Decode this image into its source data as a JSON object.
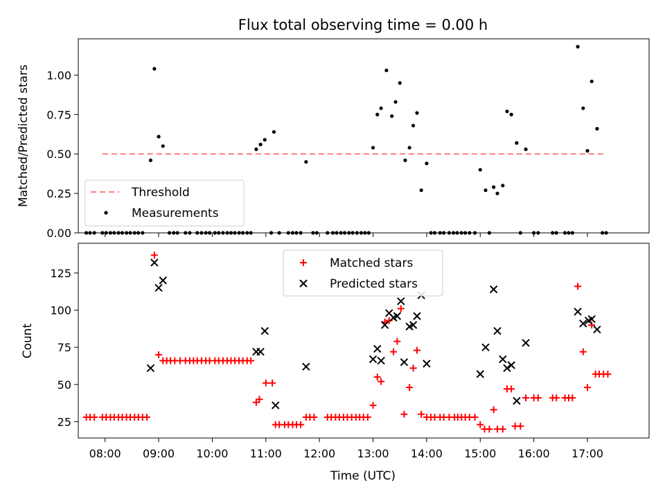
{
  "figure": {
    "title": "Flux total observing time = 0.00 h"
  },
  "colors": {
    "threshold": "#ff7f7f",
    "measurements": "#000000",
    "matched": "#ff0000",
    "predicted": "#000000",
    "axes": "#000000",
    "background": "#ffffff"
  },
  "chart_data": [
    {
      "type": "scatter",
      "title": "Flux total observing time = 0.00 h",
      "xlabel": "",
      "ylabel": "Matched/Predicted stars",
      "x_unit": "hours (UTC)",
      "xlim": [
        7.5,
        18.15
      ],
      "ylim": [
        0.0,
        1.23
      ],
      "yticks": [
        0.0,
        0.25,
        0.5,
        0.75,
        1.0
      ],
      "ytick_labels": [
        "0.00",
        "0.25",
        "0.50",
        "0.75",
        "1.00"
      ],
      "legend_position": "lower-left",
      "grid": false,
      "threshold": {
        "name": "Threshold",
        "y": 0.5,
        "x_range": [
          7.95,
          17.35
        ],
        "style": "dashed"
      },
      "series": [
        {
          "name": "Measurements",
          "marker": "dot",
          "points": [
            [
              7.65,
              0
            ],
            [
              7.72,
              0
            ],
            [
              7.8,
              0
            ],
            [
              7.95,
              0
            ],
            [
              8.02,
              0
            ],
            [
              8.1,
              0
            ],
            [
              8.17,
              0
            ],
            [
              8.25,
              0
            ],
            [
              8.32,
              0
            ],
            [
              8.4,
              0
            ],
            [
              8.47,
              0
            ],
            [
              8.55,
              0
            ],
            [
              8.62,
              0
            ],
            [
              8.7,
              0
            ],
            [
              8.85,
              0.46
            ],
            [
              8.92,
              1.04
            ],
            [
              9.0,
              0.61
            ],
            [
              9.08,
              0.55
            ],
            [
              9.2,
              0
            ],
            [
              9.28,
              0
            ],
            [
              9.35,
              0
            ],
            [
              9.5,
              0
            ],
            [
              9.58,
              0
            ],
            [
              9.72,
              0
            ],
            [
              9.8,
              0
            ],
            [
              9.88,
              0
            ],
            [
              9.95,
              0
            ],
            [
              10.05,
              0
            ],
            [
              10.12,
              0
            ],
            [
              10.2,
              0
            ],
            [
              10.28,
              0
            ],
            [
              10.35,
              0
            ],
            [
              10.42,
              0
            ],
            [
              10.5,
              0
            ],
            [
              10.57,
              0
            ],
            [
              10.65,
              0
            ],
            [
              10.72,
              0
            ],
            [
              10.82,
              0.53
            ],
            [
              10.9,
              0.56
            ],
            [
              10.98,
              0.59
            ],
            [
              11.15,
              0.64
            ],
            [
              11.1,
              0
            ],
            [
              11.25,
              0
            ],
            [
              11.42,
              0
            ],
            [
              11.5,
              0
            ],
            [
              11.57,
              0
            ],
            [
              11.65,
              0
            ],
            [
              11.75,
              0.45
            ],
            [
              11.88,
              0
            ],
            [
              11.95,
              0
            ],
            [
              12.15,
              0
            ],
            [
              12.25,
              0
            ],
            [
              12.32,
              0
            ],
            [
              12.4,
              0
            ],
            [
              12.47,
              0
            ],
            [
              12.55,
              0
            ],
            [
              12.62,
              0
            ],
            [
              12.7,
              0
            ],
            [
              12.78,
              0
            ],
            [
              12.85,
              0
            ],
            [
              12.92,
              0
            ],
            [
              13.0,
              0.54
            ],
            [
              13.08,
              0.75
            ],
            [
              13.15,
              0.79
            ],
            [
              13.25,
              1.03
            ],
            [
              13.35,
              0.74
            ],
            [
              13.42,
              0.83
            ],
            [
              13.5,
              0.95
            ],
            [
              13.6,
              0.46
            ],
            [
              13.68,
              0.54
            ],
            [
              13.75,
              0.68
            ],
            [
              13.82,
              0.76
            ],
            [
              13.9,
              0.27
            ],
            [
              14.0,
              0.44
            ],
            [
              14.08,
              0
            ],
            [
              14.15,
              0
            ],
            [
              14.25,
              0
            ],
            [
              14.32,
              0
            ],
            [
              14.42,
              0
            ],
            [
              14.5,
              0
            ],
            [
              14.57,
              0
            ],
            [
              14.65,
              0
            ],
            [
              14.72,
              0
            ],
            [
              14.8,
              0
            ],
            [
              14.9,
              0
            ],
            [
              15.0,
              0.4
            ],
            [
              15.1,
              0.27
            ],
            [
              15.25,
              0.29
            ],
            [
              15.32,
              0.25
            ],
            [
              15.42,
              0.3
            ],
            [
              15.5,
              0.77
            ],
            [
              15.58,
              0.75
            ],
            [
              15.68,
              0.57
            ],
            [
              15.85,
              0.53
            ],
            [
              15.17,
              0
            ],
            [
              15.75,
              0
            ],
            [
              16.0,
              0
            ],
            [
              16.08,
              0
            ],
            [
              16.35,
              0
            ],
            [
              16.42,
              0
            ],
            [
              16.58,
              0
            ],
            [
              16.65,
              0
            ],
            [
              16.72,
              0
            ],
            [
              16.82,
              1.18
            ],
            [
              16.92,
              0.79
            ],
            [
              17.0,
              0.52
            ],
            [
              17.08,
              0.96
            ],
            [
              17.18,
              0.66
            ],
            [
              17.28,
              0
            ],
            [
              17.35,
              0
            ]
          ]
        }
      ]
    },
    {
      "type": "scatter",
      "title": "",
      "xlabel": "Time (UTC)",
      "ylabel": "Count",
      "x_unit": "hours (UTC)",
      "xlim": [
        7.5,
        18.15
      ],
      "ylim": [
        14,
        145
      ],
      "xticks": [
        8,
        9,
        10,
        11,
        12,
        13,
        14,
        15,
        16,
        17
      ],
      "xtick_labels": [
        "08:00",
        "09:00",
        "10:00",
        "11:00",
        "12:00",
        "13:00",
        "14:00",
        "15:00",
        "16:00",
        "17:00"
      ],
      "yticks": [
        25,
        50,
        75,
        100,
        125
      ],
      "ytick_labels": [
        "25",
        "50",
        "75",
        "100",
        "125"
      ],
      "legend_position": "upper-center",
      "grid": false,
      "series": [
        {
          "name": "Matched stars",
          "marker": "plus",
          "points": [
            [
              7.65,
              28
            ],
            [
              7.72,
              28
            ],
            [
              7.8,
              28
            ],
            [
              7.95,
              28
            ],
            [
              8.02,
              28
            ],
            [
              8.1,
              28
            ],
            [
              8.17,
              28
            ],
            [
              8.25,
              28
            ],
            [
              8.32,
              28
            ],
            [
              8.4,
              28
            ],
            [
              8.47,
              28
            ],
            [
              8.55,
              28
            ],
            [
              8.62,
              28
            ],
            [
              8.7,
              28
            ],
            [
              8.78,
              28
            ],
            [
              8.92,
              137
            ],
            [
              9.0,
              70
            ],
            [
              9.08,
              66
            ],
            [
              9.15,
              66
            ],
            [
              9.22,
              66
            ],
            [
              9.3,
              66
            ],
            [
              9.4,
              66
            ],
            [
              9.5,
              66
            ],
            [
              9.58,
              66
            ],
            [
              9.65,
              66
            ],
            [
              9.72,
              66
            ],
            [
              9.8,
              66
            ],
            [
              9.88,
              66
            ],
            [
              9.95,
              66
            ],
            [
              10.05,
              66
            ],
            [
              10.12,
              66
            ],
            [
              10.2,
              66
            ],
            [
              10.28,
              66
            ],
            [
              10.35,
              66
            ],
            [
              10.42,
              66
            ],
            [
              10.5,
              66
            ],
            [
              10.57,
              66
            ],
            [
              10.65,
              66
            ],
            [
              10.72,
              66
            ],
            [
              10.82,
              38
            ],
            [
              10.88,
              40
            ],
            [
              11.0,
              51
            ],
            [
              11.12,
              51
            ],
            [
              11.18,
              23
            ],
            [
              11.25,
              23
            ],
            [
              11.35,
              23
            ],
            [
              11.42,
              23
            ],
            [
              11.5,
              23
            ],
            [
              11.57,
              23
            ],
            [
              11.65,
              23
            ],
            [
              11.75,
              28
            ],
            [
              11.82,
              28
            ],
            [
              11.9,
              28
            ],
            [
              12.15,
              28
            ],
            [
              12.22,
              28
            ],
            [
              12.3,
              28
            ],
            [
              12.37,
              28
            ],
            [
              12.45,
              28
            ],
            [
              12.52,
              28
            ],
            [
              12.6,
              28
            ],
            [
              12.68,
              28
            ],
            [
              12.75,
              28
            ],
            [
              12.82,
              28
            ],
            [
              12.9,
              28
            ],
            [
              13.0,
              36
            ],
            [
              13.08,
              55
            ],
            [
              13.15,
              52
            ],
            [
              13.22,
              92
            ],
            [
              13.3,
              93
            ],
            [
              13.38,
              72
            ],
            [
              13.45,
              79
            ],
            [
              13.52,
              101
            ],
            [
              13.58,
              30
            ],
            [
              13.68,
              48
            ],
            [
              13.75,
              61
            ],
            [
              13.82,
              73
            ],
            [
              13.9,
              30
            ],
            [
              14.0,
              28
            ],
            [
              14.08,
              28
            ],
            [
              14.15,
              28
            ],
            [
              14.25,
              28
            ],
            [
              14.32,
              28
            ],
            [
              14.42,
              28
            ],
            [
              14.52,
              28
            ],
            [
              14.58,
              28
            ],
            [
              14.65,
              28
            ],
            [
              14.72,
              28
            ],
            [
              14.8,
              28
            ],
            [
              14.9,
              28
            ],
            [
              15.0,
              23
            ],
            [
              15.08,
              20
            ],
            [
              15.17,
              20
            ],
            [
              15.25,
              33
            ],
            [
              15.32,
              20
            ],
            [
              15.42,
              20
            ],
            [
              15.5,
              47
            ],
            [
              15.58,
              47
            ],
            [
              15.65,
              22
            ],
            [
              15.75,
              22
            ],
            [
              15.85,
              41
            ],
            [
              16.0,
              41
            ],
            [
              16.08,
              41
            ],
            [
              16.35,
              41
            ],
            [
              16.42,
              41
            ],
            [
              16.58,
              41
            ],
            [
              16.65,
              41
            ],
            [
              16.72,
              41
            ],
            [
              16.82,
              116
            ],
            [
              16.92,
              72
            ],
            [
              17.0,
              48
            ],
            [
              17.08,
              90
            ],
            [
              17.15,
              57
            ],
            [
              17.22,
              57
            ],
            [
              17.3,
              57
            ],
            [
              17.38,
              57
            ]
          ]
        },
        {
          "name": "Predicted stars",
          "marker": "x",
          "points": [
            [
              8.85,
              61
            ],
            [
              8.92,
              132
            ],
            [
              9.0,
              115
            ],
            [
              9.08,
              120
            ],
            [
              10.82,
              72
            ],
            [
              10.9,
              72
            ],
            [
              10.98,
              86
            ],
            [
              11.18,
              36
            ],
            [
              11.75,
              62
            ],
            [
              13.0,
              67
            ],
            [
              13.08,
              74
            ],
            [
              13.15,
              66
            ],
            [
              13.22,
              90
            ],
            [
              13.3,
              98
            ],
            [
              13.38,
              95
            ],
            [
              13.45,
              96
            ],
            [
              13.52,
              106
            ],
            [
              13.58,
              65
            ],
            [
              13.68,
              89
            ],
            [
              13.75,
              90
            ],
            [
              13.82,
              96
            ],
            [
              13.9,
              110
            ],
            [
              14.0,
              64
            ],
            [
              15.0,
              57
            ],
            [
              15.1,
              75
            ],
            [
              15.25,
              114
            ],
            [
              15.32,
              86
            ],
            [
              15.42,
              67
            ],
            [
              15.5,
              61
            ],
            [
              15.58,
              63
            ],
            [
              15.68,
              39
            ],
            [
              15.85,
              78
            ],
            [
              16.82,
              99
            ],
            [
              16.92,
              91
            ],
            [
              17.02,
              93
            ],
            [
              17.08,
              94
            ],
            [
              17.18,
              87
            ]
          ]
        }
      ]
    }
  ]
}
